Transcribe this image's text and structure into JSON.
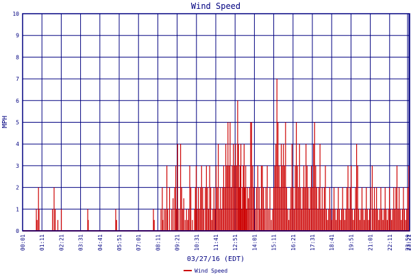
{
  "chart_data": {
    "type": "bar",
    "title": "Wind Speed",
    "ylabel": "MPH",
    "xlabel": "03/27/16 (EDT)",
    "ylim": [
      0,
      10
    ],
    "yticks": [
      0,
      1,
      2,
      3,
      4,
      5,
      6,
      7,
      8,
      9,
      10
    ],
    "xticks": [
      "00:01",
      "01:11",
      "02:21",
      "03:31",
      "04:41",
      "05:51",
      "07:01",
      "08:11",
      "09:21",
      "10:31",
      "11:41",
      "12:51",
      "14:01",
      "15:11",
      "16:21",
      "17:31",
      "18:41",
      "19:51",
      "21:01",
      "22:11",
      "23:21",
      "23:59"
    ],
    "grid": true,
    "legend": {
      "position": "bottom-center"
    },
    "colors": {
      "series": "#cc0000",
      "axis": "#000080",
      "grid": "#000080"
    },
    "series": [
      {
        "name": "Wind Speed",
        "x_range_minutes": [
          1,
          1439
        ],
        "points": [
          [
            52,
            1
          ],
          [
            55,
            0.5
          ],
          [
            60,
            2
          ],
          [
            62,
            1
          ],
          [
            112,
            1
          ],
          [
            118,
            2
          ],
          [
            122,
            1
          ],
          [
            132,
            0.5
          ],
          [
            145,
            1
          ],
          [
            243,
            1
          ],
          [
            245,
            0.5
          ],
          [
            347,
            1
          ],
          [
            350,
            0.5
          ],
          [
            487,
            1
          ],
          [
            490,
            0.5
          ],
          [
            515,
            1
          ],
          [
            520,
            2
          ],
          [
            522,
            0.5
          ],
          [
            527,
            1
          ],
          [
            532,
            1
          ],
          [
            537,
            3
          ],
          [
            540,
            1
          ],
          [
            547,
            2
          ],
          [
            555,
            1
          ],
          [
            560,
            1.5
          ],
          [
            566,
            2
          ],
          [
            570,
            3
          ],
          [
            573,
            1
          ],
          [
            577,
            4
          ],
          [
            582,
            1
          ],
          [
            588,
            4
          ],
          [
            592,
            2
          ],
          [
            596,
            1
          ],
          [
            600,
            1.5
          ],
          [
            605,
            0.5
          ],
          [
            610,
            1
          ],
          [
            614,
            0.5
          ],
          [
            618,
            1
          ],
          [
            622,
            3
          ],
          [
            626,
            2
          ],
          [
            632,
            0.5
          ],
          [
            640,
            1
          ],
          [
            643,
            2
          ],
          [
            646,
            3
          ],
          [
            650,
            1
          ],
          [
            654,
            2
          ],
          [
            658,
            1
          ],
          [
            662,
            2
          ],
          [
            666,
            3
          ],
          [
            670,
            2
          ],
          [
            674,
            1
          ],
          [
            680,
            2
          ],
          [
            684,
            3
          ],
          [
            688,
            2
          ],
          [
            692,
            1
          ],
          [
            696,
            3
          ],
          [
            700,
            2
          ],
          [
            704,
            0.5
          ],
          [
            708,
            1
          ],
          [
            712,
            2
          ],
          [
            716,
            1
          ],
          [
            720,
            3
          ],
          [
            724,
            2
          ],
          [
            728,
            4
          ],
          [
            732,
            1
          ],
          [
            736,
            2
          ],
          [
            740,
            1
          ],
          [
            744,
            2
          ],
          [
            748,
            3
          ],
          [
            752,
            2
          ],
          [
            756,
            4
          ],
          [
            760,
            3
          ],
          [
            764,
            5
          ],
          [
            768,
            3
          ],
          [
            772,
            5
          ],
          [
            776,
            2
          ],
          [
            780,
            3
          ],
          [
            784,
            4
          ],
          [
            788,
            3
          ],
          [
            792,
            4
          ],
          [
            796,
            3
          ],
          [
            800,
            6
          ],
          [
            803,
            4
          ],
          [
            806,
            2
          ],
          [
            809,
            3
          ],
          [
            812,
            4
          ],
          [
            815,
            1
          ],
          [
            818,
            2
          ],
          [
            821,
            3
          ],
          [
            824,
            4
          ],
          [
            827,
            2
          ],
          [
            830,
            3
          ],
          [
            833,
            1
          ],
          [
            836,
            2
          ],
          [
            840,
            1.5
          ],
          [
            844,
            2
          ],
          [
            848,
            5
          ],
          [
            852,
            5
          ],
          [
            856,
            3
          ],
          [
            860,
            2
          ],
          [
            865,
            1
          ],
          [
            870,
            2
          ],
          [
            875,
            3
          ],
          [
            880,
            2
          ],
          [
            884,
            1
          ],
          [
            888,
            3
          ],
          [
            892,
            3
          ],
          [
            896,
            2
          ],
          [
            900,
            1
          ],
          [
            905,
            2
          ],
          [
            910,
            3
          ],
          [
            915,
            1
          ],
          [
            920,
            2
          ],
          [
            925,
            0.5
          ],
          [
            930,
            1
          ],
          [
            934,
            2
          ],
          [
            938,
            3
          ],
          [
            942,
            4
          ],
          [
            946,
            7
          ],
          [
            950,
            5
          ],
          [
            954,
            3
          ],
          [
            958,
            2
          ],
          [
            962,
            4
          ],
          [
            966,
            3
          ],
          [
            970,
            4
          ],
          [
            974,
            3
          ],
          [
            978,
            5
          ],
          [
            982,
            2
          ],
          [
            986,
            1
          ],
          [
            990,
            0.5
          ],
          [
            994,
            1
          ],
          [
            998,
            2
          ],
          [
            1002,
            4
          ],
          [
            1006,
            2
          ],
          [
            1010,
            1
          ],
          [
            1014,
            3
          ],
          [
            1018,
            5
          ],
          [
            1022,
            3
          ],
          [
            1026,
            2
          ],
          [
            1030,
            4
          ],
          [
            1034,
            2
          ],
          [
            1038,
            1
          ],
          [
            1042,
            2
          ],
          [
            1046,
            3
          ],
          [
            1050,
            2
          ],
          [
            1054,
            4
          ],
          [
            1058,
            3
          ],
          [
            1062,
            2
          ],
          [
            1066,
            1
          ],
          [
            1070,
            2
          ],
          [
            1074,
            3
          ],
          [
            1078,
            2
          ],
          [
            1082,
            4
          ],
          [
            1086,
            5
          ],
          [
            1090,
            3
          ],
          [
            1094,
            2
          ],
          [
            1098,
            1
          ],
          [
            1102,
            2
          ],
          [
            1106,
            4
          ],
          [
            1110,
            1
          ],
          [
            1114,
            2
          ],
          [
            1118,
            1
          ],
          [
            1122,
            2
          ],
          [
            1126,
            3
          ],
          [
            1130,
            1
          ],
          [
            1134,
            0.5
          ],
          [
            1138,
            1
          ],
          [
            1142,
            2
          ],
          [
            1146,
            1
          ],
          [
            1150,
            0.5
          ],
          [
            1154,
            1
          ],
          [
            1158,
            2
          ],
          [
            1162,
            1
          ],
          [
            1166,
            0.5
          ],
          [
            1170,
            1
          ],
          [
            1174,
            2
          ],
          [
            1178,
            1
          ],
          [
            1182,
            0.5
          ],
          [
            1186,
            1
          ],
          [
            1190,
            2
          ],
          [
            1194,
            1
          ],
          [
            1198,
            0.5
          ],
          [
            1202,
            1
          ],
          [
            1206,
            2
          ],
          [
            1210,
            3
          ],
          [
            1214,
            1
          ],
          [
            1218,
            2
          ],
          [
            1222,
            3
          ],
          [
            1226,
            1
          ],
          [
            1230,
            0.5
          ],
          [
            1234,
            1
          ],
          [
            1238,
            2
          ],
          [
            1242,
            4
          ],
          [
            1246,
            3
          ],
          [
            1250,
            1
          ],
          [
            1254,
            0.5
          ],
          [
            1258,
            1
          ],
          [
            1262,
            2
          ],
          [
            1266,
            1
          ],
          [
            1270,
            0.5
          ],
          [
            1274,
            1
          ],
          [
            1278,
            2
          ],
          [
            1282,
            1
          ],
          [
            1286,
            0.5
          ],
          [
            1290,
            1
          ],
          [
            1294,
            2
          ],
          [
            1300,
            3
          ],
          [
            1304,
            1
          ],
          [
            1308,
            2
          ],
          [
            1312,
            1
          ],
          [
            1316,
            2
          ],
          [
            1320,
            1
          ],
          [
            1324,
            0.5
          ],
          [
            1328,
            1
          ],
          [
            1332,
            2
          ],
          [
            1336,
            1
          ],
          [
            1340,
            0.5
          ],
          [
            1344,
            1
          ],
          [
            1348,
            2
          ],
          [
            1352,
            1
          ],
          [
            1356,
            0.5
          ],
          [
            1360,
            1
          ],
          [
            1364,
            2
          ],
          [
            1368,
            1
          ],
          [
            1372,
            0.5
          ],
          [
            1376,
            1
          ],
          [
            1380,
            2
          ],
          [
            1384,
            1
          ],
          [
            1388,
            2
          ],
          [
            1392,
            3
          ],
          [
            1396,
            1
          ],
          [
            1400,
            2
          ],
          [
            1404,
            1
          ],
          [
            1408,
            0.5
          ],
          [
            1412,
            1
          ],
          [
            1416,
            2
          ],
          [
            1420,
            1
          ],
          [
            1424,
            0.5
          ],
          [
            1428,
            1
          ],
          [
            1432,
            2
          ],
          [
            1436,
            3
          ]
        ]
      }
    ]
  }
}
